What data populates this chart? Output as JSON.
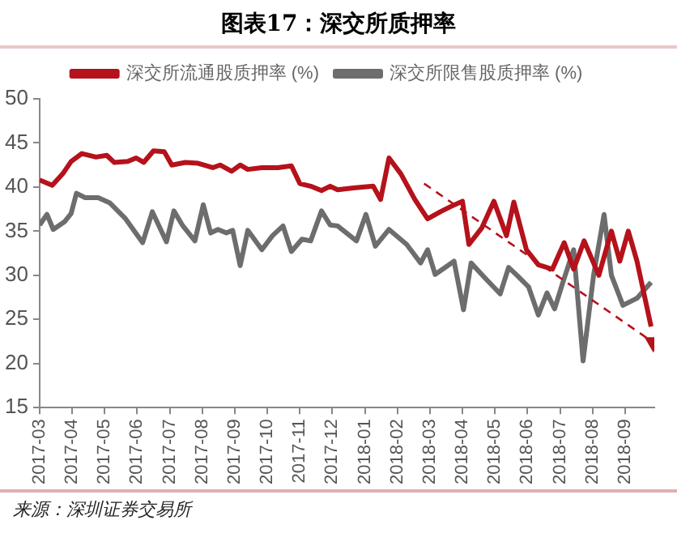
{
  "chart_data": {
    "type": "line",
    "title": "图表17：深交所质押率",
    "legend": "top",
    "grid": false,
    "marker": "none",
    "line_style": "solid",
    "xlim": [
      "2017-03-01",
      "2018-09-28"
    ],
    "xticks": [
      "2017-03",
      "2017-04",
      "2017-05",
      "2017-06",
      "2017-07",
      "2017-08",
      "2017-09",
      "2017-10",
      "2017-11",
      "2017-12",
      "2018-01",
      "2018-02",
      "2018-03",
      "2018-04",
      "2018-05",
      "2018-06",
      "2018-07",
      "2018-08",
      "2018-09"
    ],
    "ylim": [
      15,
      50
    ],
    "yticks": [
      15,
      20,
      25,
      30,
      35,
      40,
      45,
      50
    ],
    "series": [
      {
        "name": "深交所流通股质押率 (%)",
        "color": "#b5121b",
        "x": [
          "2017-03-01",
          "2017-03-13",
          "2017-03-23",
          "2017-03-31",
          "2017-04-10",
          "2017-04-23",
          "2017-05-03",
          "2017-05-10",
          "2017-05-23",
          "2017-05-31",
          "2017-06-07",
          "2017-06-16",
          "2017-06-26",
          "2017-07-03",
          "2017-07-16",
          "2017-07-28",
          "2017-08-11",
          "2017-08-18",
          "2017-08-29",
          "2017-09-06",
          "2017-09-13",
          "2017-09-26",
          "2017-10-11",
          "2017-10-24",
          "2017-11-01",
          "2017-11-11",
          "2017-11-21",
          "2017-11-29",
          "2017-12-06",
          "2017-12-21",
          "2018-01-09",
          "2018-01-16",
          "2018-01-24",
          "2018-02-04",
          "2018-02-16",
          "2018-02-27",
          "2018-03-11",
          "2018-03-21",
          "2018-04-01",
          "2018-04-07",
          "2018-04-19",
          "2018-04-30",
          "2018-05-12",
          "2018-05-19",
          "2018-05-31",
          "2018-06-11",
          "2018-06-24",
          "2018-07-05",
          "2018-07-14",
          "2018-07-24",
          "2018-08-07",
          "2018-08-19",
          "2018-08-27",
          "2018-09-04",
          "2018-09-12",
          "2018-09-25"
        ],
        "values": [
          40.8,
          40.2,
          41.5,
          42.9,
          43.8,
          43.4,
          43.6,
          42.8,
          42.9,
          43.3,
          42.8,
          44.1,
          44.0,
          42.5,
          42.8,
          42.7,
          42.2,
          42.5,
          41.8,
          42.5,
          42.0,
          42.2,
          42.2,
          42.4,
          40.4,
          40.1,
          39.6,
          40.1,
          39.7,
          39.9,
          40.1,
          38.6,
          43.3,
          41.5,
          38.6,
          36.4,
          37.2,
          37.8,
          38.4,
          33.5,
          35.4,
          38.4,
          34.5,
          38.3,
          32.9,
          31.2,
          30.7,
          33.7,
          30.7,
          33.9,
          30.0,
          35.0,
          31.6,
          35.0,
          31.6,
          24.2
        ]
      },
      {
        "name": "深交所限售股质押率 (%)",
        "color": "#6d6d6d",
        "x": [
          "2017-03-01",
          "2017-03-08",
          "2017-03-14",
          "2017-03-25",
          "2017-03-31",
          "2017-04-05",
          "2017-04-13",
          "2017-04-25",
          "2017-05-06",
          "2017-05-21",
          "2017-06-06",
          "2017-06-15",
          "2017-06-28",
          "2017-07-05",
          "2017-07-13",
          "2017-07-25",
          "2017-08-02",
          "2017-08-09",
          "2017-08-16",
          "2017-08-24",
          "2017-08-30",
          "2017-09-06",
          "2017-09-13",
          "2017-09-26",
          "2017-10-06",
          "2017-10-16",
          "2017-10-24",
          "2017-11-03",
          "2017-11-11",
          "2017-11-21",
          "2017-11-29",
          "2017-12-06",
          "2017-12-24",
          "2018-01-02",
          "2018-01-11",
          "2018-01-24",
          "2018-02-09",
          "2018-02-21",
          "2018-02-27",
          "2018-03-06",
          "2018-03-24",
          "2018-04-02",
          "2018-04-09",
          "2018-04-21",
          "2018-05-06",
          "2018-05-14",
          "2018-05-22",
          "2018-06-02",
          "2018-06-11",
          "2018-06-19",
          "2018-06-26",
          "2018-07-04",
          "2018-07-14",
          "2018-07-23",
          "2018-08-02",
          "2018-08-12",
          "2018-08-19",
          "2018-08-30",
          "2018-09-12",
          "2018-09-25"
        ],
        "values": [
          35.7,
          36.9,
          35.2,
          36.1,
          37.0,
          39.3,
          38.8,
          38.8,
          38.2,
          36.4,
          33.7,
          37.2,
          33.8,
          37.3,
          35.7,
          33.9,
          38.0,
          34.8,
          35.2,
          34.8,
          35.1,
          31.1,
          35.1,
          32.9,
          34.5,
          35.6,
          32.7,
          34.1,
          33.9,
          37.3,
          35.7,
          35.6,
          33.9,
          36.9,
          33.3,
          35.2,
          33.5,
          31.4,
          32.9,
          30.1,
          31.6,
          26.1,
          31.4,
          29.8,
          27.9,
          30.9,
          30.0,
          28.7,
          25.5,
          28.0,
          26.2,
          29.3,
          32.9,
          20.3,
          30.0,
          36.9,
          30.0,
          26.6,
          27.4,
          29.2
        ]
      },
      {
        "type": "line",
        "color": "#b5121b",
        "line_style": "dashed",
        "marker": "triangle",
        "x": [
          "2018-02-24",
          "2018-09-27"
        ],
        "values": [
          40.4,
          22.4
        ]
      }
    ],
    "annotations": [
      "来源：深圳证券交易所"
    ]
  }
}
